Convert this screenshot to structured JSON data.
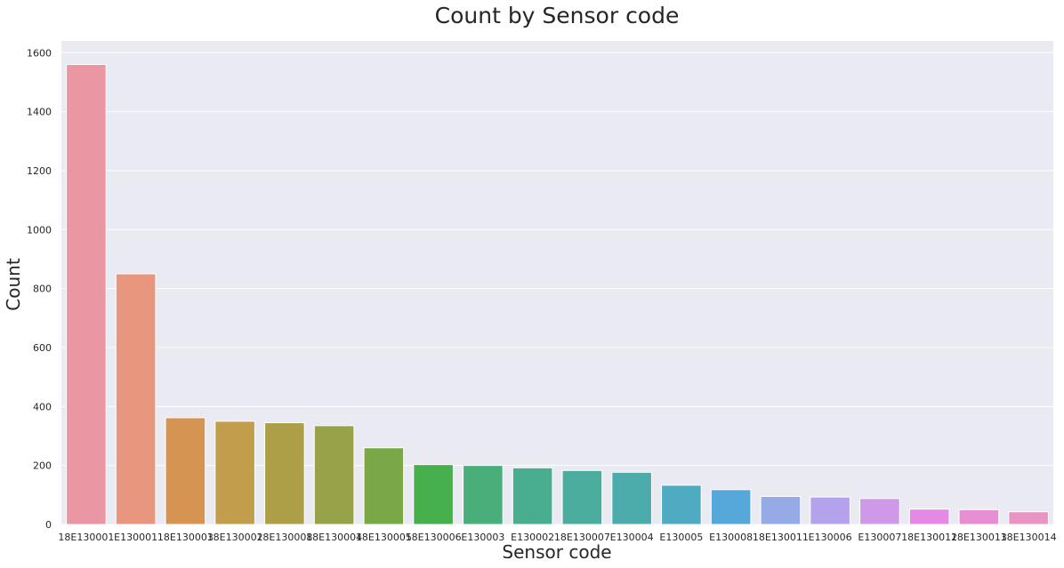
{
  "chart_data": {
    "type": "bar",
    "title": "Count by Sensor code",
    "xlabel": "Sensor code",
    "ylabel": "Count",
    "ylim": [
      0,
      1640
    ],
    "yticks": [
      0,
      200,
      400,
      600,
      800,
      1000,
      1200,
      1400,
      1600
    ],
    "grid": true,
    "categories": [
      "18E130001",
      "E130001",
      "18E130003",
      "18E130002",
      "18E130008",
      "18E130004",
      "18E130005",
      "18E130006",
      "E130003",
      "E130002",
      "18E130007",
      "E130004",
      "E130005",
      "E130008",
      "18E130011",
      "E130006",
      "E130007",
      "18E130012",
      "18E130013",
      "18E130014"
    ],
    "values": [
      1560,
      850,
      362,
      350,
      345,
      335,
      260,
      203,
      200,
      192,
      183,
      177,
      133,
      118,
      95,
      93,
      88,
      52,
      50,
      43
    ],
    "colors": [
      "#ea96a3",
      "#e8967e",
      "#d69453",
      "#c29d4b",
      "#ad9f48",
      "#98a248",
      "#7aa847",
      "#47af4c",
      "#4aae7a",
      "#49ad8f",
      "#4aad9e",
      "#4cacac",
      "#4eabc2",
      "#56a8db",
      "#96aae5",
      "#b5a2ec",
      "#cf99ea",
      "#e689e6",
      "#e88fd3",
      "#e895c5"
    ]
  }
}
